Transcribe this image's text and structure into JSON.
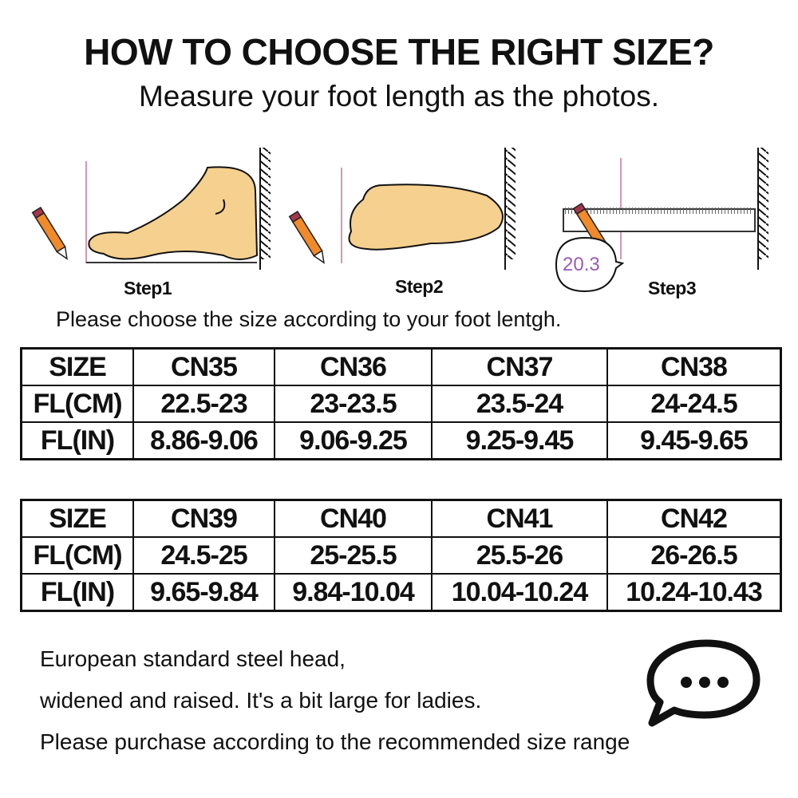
{
  "header": {
    "title": "HOW TO CHOOSE THE RIGHT SIZE?",
    "subtitle": "Measure your foot length as the photos."
  },
  "steps": [
    {
      "label": "Step1"
    },
    {
      "label": "Step2"
    },
    {
      "label": "Step3",
      "reading": "20.3"
    }
  ],
  "instruction": "Please choose the size according to your foot lentgh.",
  "tables": [
    {
      "rows": [
        [
          "SIZE",
          "CN35",
          "CN36",
          "CN37",
          "CN38"
        ],
        [
          "FL(CM)",
          "22.5-23",
          "23-23.5",
          "23.5-24",
          "24-24.5"
        ],
        [
          "FL(IN)",
          "8.86-9.06",
          "9.06-9.25",
          "9.25-9.45",
          "9.45-9.65"
        ]
      ]
    },
    {
      "rows": [
        [
          "SIZE",
          "CN39",
          "CN40",
          "CN41",
          "CN42"
        ],
        [
          "FL(CM)",
          "24.5-25",
          "25-25.5",
          "25.5-26",
          "26-26.5"
        ],
        [
          "FL(IN)",
          "9.65-9.84",
          "9.84-10.04",
          "10.04-10.24",
          "10.24-10.43"
        ]
      ]
    }
  ],
  "notes": [
    "European standard steel head,",
    "widened and raised. It's a bit large for ladies.",
    "Please purchase according to the recommended size range"
  ],
  "icons": {
    "chat": "speech-bubble-ellipsis-icon",
    "pencil": "pencil-icon",
    "ruler": "ruler-icon",
    "foot": "foot-illustration"
  },
  "colors": {
    "foot": "#f5d08e",
    "pencil": "#f08a2a",
    "reading": "#9b59b6",
    "guide_line": "#b0305a"
  }
}
